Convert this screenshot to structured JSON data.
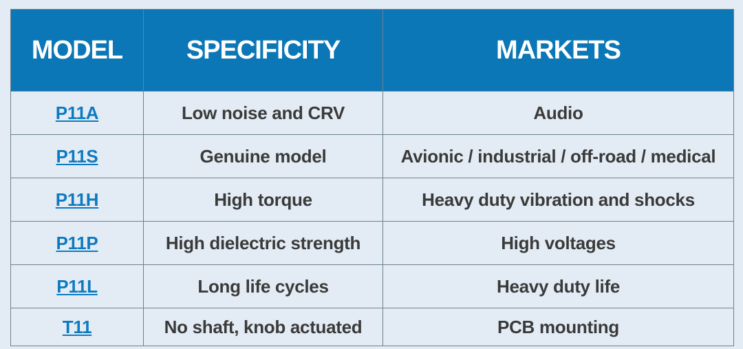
{
  "table": {
    "header": [
      "MODEL",
      "SPECIFICITY",
      "MARKETS"
    ],
    "rows": [
      [
        "P11A",
        "Low noise and CRV",
        "Audio"
      ],
      [
        "P11S",
        "Genuine model",
        "Avionic / industrial / off-road / medical"
      ],
      [
        "P11H",
        "High torque",
        "Heavy duty vibration and shocks"
      ],
      [
        "P11P",
        "High dielectric strength",
        "High voltages"
      ],
      [
        "P11L",
        "Long life cycles",
        "Heavy duty life"
      ],
      [
        "T11",
        "No shaft, knob actuated",
        "PCB mounting"
      ]
    ]
  }
}
